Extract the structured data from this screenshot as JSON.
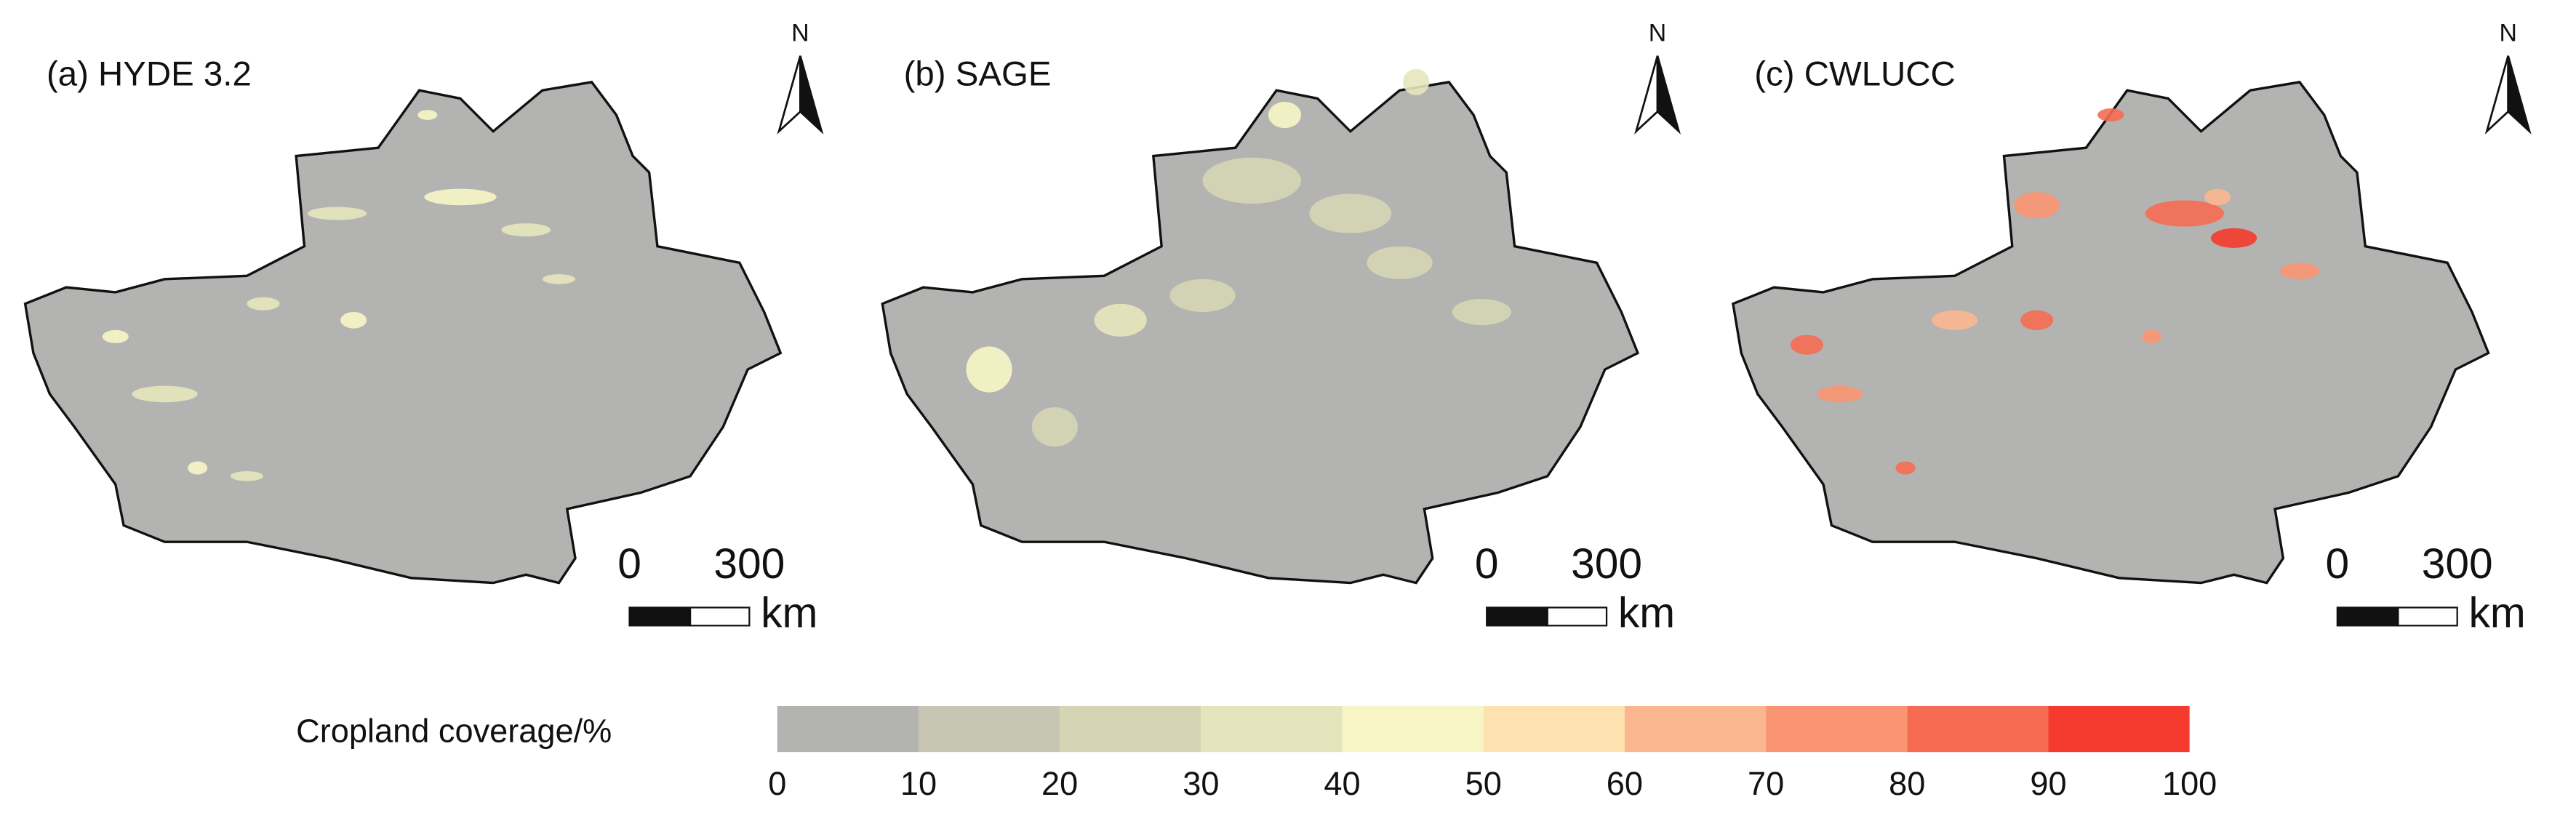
{
  "panels": [
    {
      "title": "(a) HYDE 3.2",
      "north": "N",
      "scale_start": "0",
      "scale_end": "300",
      "scale_unit": "km"
    },
    {
      "title": "(b) SAGE",
      "north": "N",
      "scale_start": "0",
      "scale_end": "300",
      "scale_unit": "km"
    },
    {
      "title": "(c) CWLUCC",
      "north": "N",
      "scale_start": "0",
      "scale_end": "300",
      "scale_unit": "km"
    }
  ],
  "legend": {
    "title": "Cropland coverage/%",
    "ticks": [
      0,
      10,
      20,
      30,
      40,
      50,
      60,
      70,
      80,
      90,
      100
    ],
    "colors": [
      "#b3b3b1",
      "#c6c6b2",
      "#d5d5b6",
      "#e5e5bd",
      "#f7f5c6",
      "#fde1ae",
      "#fbb690",
      "#f99572",
      "#f66c53",
      "#f43b2d"
    ]
  }
}
